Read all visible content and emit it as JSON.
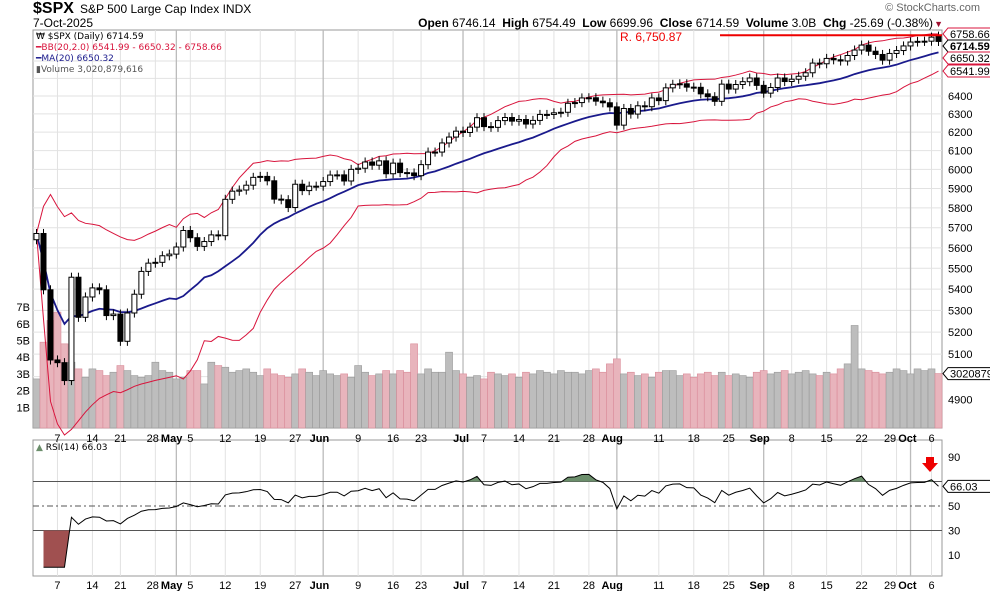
{
  "header": {
    "symbol": "$SPX",
    "name": "S&P 500 Large Cap Index",
    "exchange": "INDX",
    "date": "7-Oct-2025",
    "open_label": "Open",
    "open": "6746.14",
    "high_label": "High",
    "high": "6754.49",
    "low_label": "Low",
    "low": "6699.96",
    "close_label": "Close",
    "close": "6714.59",
    "volume_label": "Volume",
    "volume": "3.0B",
    "chg_label": "Chg",
    "chg": "-25.69 (-0.38%)",
    "logo": "© StockCharts.com"
  },
  "legend": {
    "price": "$SPX (Daily) 6714.59",
    "bb": "BB(20,2.0) 6541.99 - 6650.32 - 6758.66",
    "ma": "MA(20) 6650.32",
    "volume": "Volume 3,020,879,616",
    "rsi": "RSI(14) 66.03"
  },
  "tags": {
    "bb_upper": "6758.66",
    "close": "6714.59",
    "ma": "6650.32",
    "bb_lower": "6541.99",
    "volume": "3020879",
    "rsi": "66.03"
  },
  "annotation": {
    "resistance_label": "R. 6,750.87",
    "resistance_value": 6750.87
  },
  "colors": {
    "bb": "#d8143c",
    "ma": "#1a1a8c",
    "up_volume": "#bdbdbd",
    "down_volume": "#e8b4bc",
    "rsi_over": "#6b8e6b",
    "rsi_under": "#a05050",
    "resistance": "#ee0000",
    "arrow": "#ee0000"
  },
  "chart_data": [
    {
      "type": "candlestick",
      "scale": "log",
      "ylim": [
        4800,
        6800
      ],
      "y_ticks": [
        4900,
        5000,
        5100,
        5200,
        5300,
        5400,
        5500,
        5600,
        5700,
        5800,
        5900,
        6000,
        6100,
        6200,
        6300,
        6400,
        6500,
        6600
      ],
      "grid": true,
      "trading_days": {
        "Apr": [
          2,
          3,
          4,
          7,
          8,
          9,
          10,
          11,
          14,
          15,
          16,
          17,
          21,
          22,
          23,
          24,
          25,
          28,
          29,
          30
        ],
        "May": [
          1,
          2,
          5,
          6,
          7,
          8,
          9,
          12,
          13,
          14,
          15,
          16,
          19,
          20,
          21,
          22,
          23,
          27,
          28,
          29,
          30
        ],
        "Jun": [
          2,
          3,
          4,
          5,
          6,
          9,
          10,
          11,
          12,
          13,
          16,
          17,
          18,
          20,
          23,
          24,
          25,
          26,
          27,
          30
        ],
        "Jul": [
          1,
          2,
          3,
          7,
          8,
          9,
          10,
          11,
          14,
          15,
          16,
          17,
          18,
          21,
          22,
          23,
          24,
          25,
          28,
          29,
          30,
          31
        ],
        "Aug": [
          1,
          4,
          5,
          6,
          7,
          8,
          11,
          12,
          13,
          14,
          15,
          18,
          19,
          20,
          21,
          22,
          25,
          26,
          27,
          28,
          29
        ],
        "Sep": [
          2,
          3,
          4,
          5,
          8,
          9,
          10,
          11,
          12,
          15,
          16,
          17,
          18,
          19,
          22,
          23,
          24,
          25,
          26,
          29,
          30
        ],
        "Oct": [
          1,
          2,
          3,
          6,
          7
        ]
      },
      "close": [
        5671,
        5397,
        5074,
        5062,
        4983,
        5457,
        5268,
        5363,
        5406,
        5397,
        5276,
        5283,
        5158,
        5288,
        5376,
        5485,
        5525,
        5529,
        5561,
        5569,
        5604,
        5686,
        5650,
        5607,
        5631,
        5664,
        5660,
        5844,
        5886,
        5892,
        5917,
        5958,
        5963,
        5940,
        5845,
        5842,
        5802,
        5922,
        5889,
        5912,
        5912,
        5936,
        5970,
        5971,
        5939,
        6000,
        6006,
        6039,
        6022,
        6045,
        5977,
        6033,
        5983,
        5981,
        5967,
        6025,
        6092,
        6092,
        6141,
        6173,
        6205,
        6198,
        6227,
        6279,
        6230,
        6226,
        6263,
        6280,
        6260,
        6269,
        6244,
        6264,
        6297,
        6297,
        6306,
        6309,
        6359,
        6363,
        6389,
        6390,
        6371,
        6362,
        6339,
        6238,
        6330,
        6299,
        6345,
        6340,
        6389,
        6374,
        6446,
        6466,
        6469,
        6450,
        6449,
        6412,
        6396,
        6370,
        6467,
        6439,
        6465,
        6481,
        6502,
        6460,
        6416,
        6448,
        6502,
        6482,
        6495,
        6512,
        6532,
        6588,
        6584,
        6615,
        6607,
        6600,
        6632,
        6664,
        6693,
        6657,
        6638,
        6605,
        6644,
        6661,
        6688,
        6711,
        6715,
        6716,
        6740,
        6714.59
      ],
      "volume_billions": [
        2.7,
        4.9,
        6.2,
        6.7,
        4.8,
        3.7,
        3.3,
        2.8,
        3.3,
        3.2,
        2.9,
        3.1,
        3.5,
        3.2,
        2.9,
        2.8,
        2.9,
        3.7,
        3.2,
        3.1,
        2.7,
        2.8,
        3.2,
        3.2,
        2.4,
        3.7,
        3.5,
        3.4,
        3.1,
        3.2,
        3.3,
        3.1,
        2.9,
        3.3,
        3.0,
        2.9,
        2.8,
        3.0,
        3.3,
        3.1,
        2.9,
        3.2,
        3.0,
        2.9,
        3.0,
        2.8,
        3.5,
        3.1,
        2.9,
        3.0,
        3.2,
        3.0,
        3.2,
        3.1,
        4.8,
        3.0,
        3.3,
        3.1,
        3.1,
        4.3,
        3.2,
        3.0,
        2.8,
        2.9,
        2.7,
        3.1,
        3.0,
        2.9,
        3.0,
        2.8,
        3.1,
        3.0,
        3.2,
        3.1,
        3.0,
        3.2,
        3.1,
        3.1,
        3.0,
        3.2,
        3.3,
        3.1,
        3.6,
        3.9,
        3.0,
        3.1,
        2.9,
        3.0,
        2.8,
        3.1,
        3.2,
        3.2,
        2.9,
        3.0,
        2.8,
        3.0,
        3.1,
        2.9,
        3.1,
        2.9,
        3.0,
        2.9,
        2.8,
        3.1,
        3.2,
        3.0,
        3.1,
        3.2,
        3.0,
        3.1,
        3.2,
        3.0,
        2.9,
        3.1,
        3.0,
        3.3,
        3.6,
        5.9,
        3.3,
        3.2,
        3.1,
        3.0,
        3.1,
        3.3,
        3.2,
        3.0,
        3.3,
        3.2,
        3.3,
        3.02
      ],
      "volume_ticks": [
        "1B",
        "2B",
        "3B",
        "4B",
        "5B",
        "6B",
        "7B"
      ],
      "x_ticks": [
        {
          "label": "7",
          "date": "Apr-7"
        },
        {
          "label": "14",
          "date": "Apr-14"
        },
        {
          "label": "21",
          "date": "Apr-21"
        },
        {
          "label": "28",
          "date": "Apr-28"
        },
        {
          "label": "May",
          "date": "May-1",
          "bold": true
        },
        {
          "label": "5",
          "date": "May-5"
        },
        {
          "label": "12",
          "date": "May-12"
        },
        {
          "label": "19",
          "date": "May-19"
        },
        {
          "label": "27",
          "date": "May-27"
        },
        {
          "label": "Jun",
          "date": "Jun-2",
          "bold": true
        },
        {
          "label": "9",
          "date": "Jun-9"
        },
        {
          "label": "16",
          "date": "Jun-16"
        },
        {
          "label": "23",
          "date": "Jun-23"
        },
        {
          "label": "Jul",
          "date": "Jul-1",
          "bold": true
        },
        {
          "label": "7",
          "date": "Jul-7"
        },
        {
          "label": "14",
          "date": "Jul-14"
        },
        {
          "label": "21",
          "date": "Jul-21"
        },
        {
          "label": "28",
          "date": "Jul-28"
        },
        {
          "label": "Aug",
          "date": "Aug-1",
          "bold": true
        },
        {
          "label": "11",
          "date": "Aug-11"
        },
        {
          "label": "18",
          "date": "Aug-18"
        },
        {
          "label": "25",
          "date": "Aug-25"
        },
        {
          "label": "Sep",
          "date": "Sep-2",
          "bold": true
        },
        {
          "label": "8",
          "date": "Sep-8"
        },
        {
          "label": "15",
          "date": "Sep-15"
        },
        {
          "label": "22",
          "date": "Sep-22"
        },
        {
          "label": "29",
          "date": "Sep-29"
        },
        {
          "label": "Oct",
          "date": "Oct-1",
          "bold": true
        },
        {
          "label": "6",
          "date": "Oct-6"
        }
      ],
      "indicators": [
        "BB(20,2.0)",
        "MA(20)",
        "Volume"
      ]
    },
    {
      "type": "line",
      "series_name": "RSI(14)",
      "ylim": [
        0,
        100
      ],
      "y_ticks": [
        10,
        30,
        50,
        70,
        90
      ],
      "reference_lines": [
        30,
        50,
        70
      ]
    }
  ]
}
